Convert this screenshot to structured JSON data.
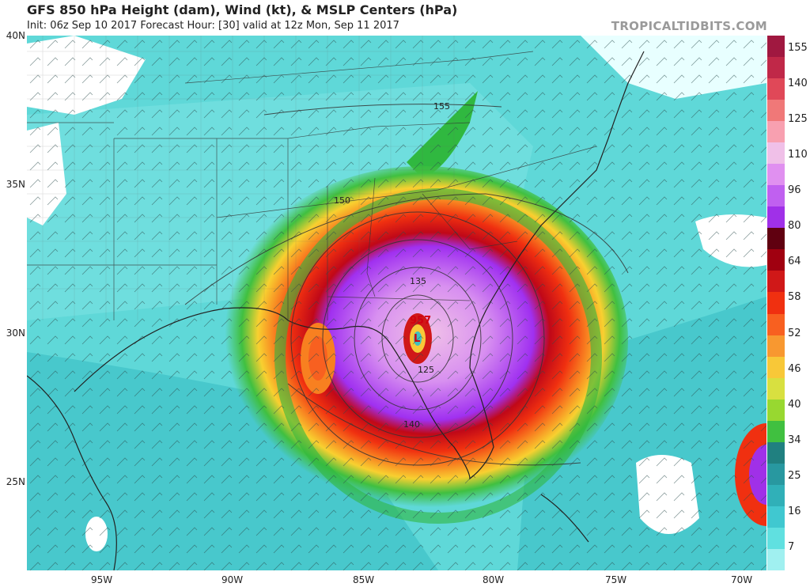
{
  "header": {
    "title": "GFS 850 hPa Height (dam), Wind (kt), & MSLP Centers (hPa)",
    "subtitle": "Init: 06z Sep 10 2017   Forecast Hour: [30]   valid at 12z Mon, Sep 11 2017",
    "brand": "TROPICALTIDBITS.COM"
  },
  "axes": {
    "lat_labels": [
      "40N",
      "35N",
      "30N",
      "25N"
    ],
    "lon_labels": [
      "95W",
      "90W",
      "85W",
      "80W",
      "75W",
      "70W"
    ]
  },
  "colorbar": {
    "labels": [
      "155",
      "140",
      "125",
      "110",
      "96",
      "80",
      "64",
      "58",
      "52",
      "46",
      "40",
      "34",
      "25",
      "16",
      "7"
    ],
    "colors": [
      "#a01840",
      "#c02848",
      "#e04858",
      "#f07878",
      "#f8a0b0",
      "#f0c0e8",
      "#e090f0",
      "#c060f0",
      "#a030e8",
      "#600010",
      "#a00010",
      "#d01818",
      "#f03010",
      "#f86020",
      "#f89830",
      "#f8c838",
      "#d8e040",
      "#98d830",
      "#40c040",
      "#208080",
      "#2898a0",
      "#30b0b8",
      "#40c8d0",
      "#60e0e0",
      "#a0f0f0"
    ]
  },
  "map": {
    "pressure_center": "957",
    "height_contours": [
      "155",
      "150",
      "135",
      "140",
      "125"
    ],
    "colors": {
      "ocean_low": "#5fd8d8",
      "calm": "#ffffff",
      "ts": "#30b840",
      "yellow": "#f8d030",
      "orange": "#f88020",
      "red": "#e02010",
      "dark_red": "#900010",
      "purple": "#a030f0",
      "lavender": "#d890f0",
      "pink": "#f0b8e8"
    }
  }
}
